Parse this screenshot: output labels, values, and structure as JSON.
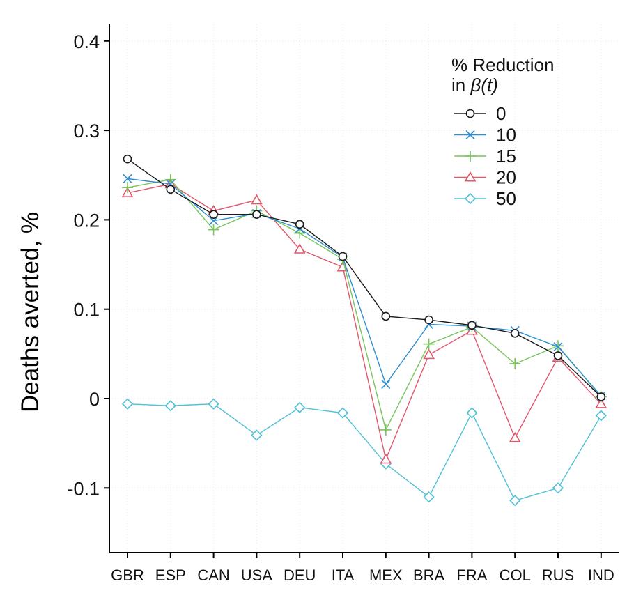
{
  "chart_data": {
    "type": "line",
    "ylabel": "Deaths averted, %",
    "xlabel": "",
    "ylim": [
      -0.17,
      0.42
    ],
    "yticks": [
      0.4,
      0.3,
      0.2,
      0.1,
      0,
      -0.1
    ],
    "ytick_labels": [
      "0.4",
      "0.3",
      "0.2",
      "0.1",
      "0",
      "-0.1"
    ],
    "categories": [
      "GBR",
      "ESP",
      "CAN",
      "USA",
      "DEU",
      "ITA",
      "MEX",
      "BRA",
      "FRA",
      "COL",
      "RUS",
      "IND"
    ],
    "grid": true,
    "legend": {
      "title_line1": "% Reduction",
      "title_line2_prefix": "in ",
      "title_line2_symbol": "β(t)",
      "placement": "top-right"
    },
    "series": [
      {
        "name": "0",
        "color": "#1a1a1a",
        "marker": "circle",
        "values": [
          0.268,
          0.234,
          0.206,
          0.206,
          0.195,
          0.159,
          0.092,
          0.088,
          0.082,
          0.073,
          0.048,
          0.002
        ]
      },
      {
        "name": "10",
        "color": "#2d8fd0",
        "marker": "x",
        "values": [
          0.246,
          0.24,
          0.199,
          0.207,
          0.19,
          0.158,
          0.016,
          0.083,
          0.081,
          0.076,
          0.058,
          0.003
        ]
      },
      {
        "name": "15",
        "color": "#77c55c",
        "marker": "plus",
        "values": [
          0.236,
          0.245,
          0.189,
          0.21,
          0.185,
          0.156,
          -0.035,
          0.061,
          0.08,
          0.039,
          0.059,
          0.002
        ]
      },
      {
        "name": "20",
        "color": "#e0566a",
        "marker": "triangle",
        "values": [
          0.23,
          0.24,
          0.21,
          0.222,
          0.167,
          0.147,
          -0.068,
          0.049,
          0.076,
          -0.044,
          0.046,
          -0.006
        ]
      },
      {
        "name": "50",
        "color": "#4fc1d5",
        "marker": "diamond",
        "values": [
          -0.006,
          -0.008,
          -0.006,
          -0.041,
          -0.01,
          -0.016,
          -0.073,
          -0.11,
          -0.016,
          -0.114,
          -0.1,
          -0.019
        ]
      }
    ]
  }
}
